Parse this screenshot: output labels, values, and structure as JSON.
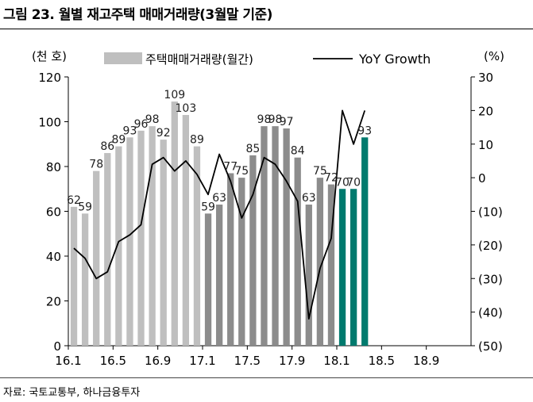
{
  "figure": {
    "title": "그림 23. 월별 재고주택 매매거래량(3월말 기준)",
    "source": "자료: 국토교통부, 하나금융투자"
  },
  "chart_data": {
    "type": "bar",
    "left_unit": "(천 호)",
    "right_unit": "(%)",
    "legend": {
      "bar_label": "주택매매거래량(월간)",
      "line_label": "YoY Growth",
      "placement": "top"
    },
    "x_ticks": [
      "16.1",
      "16.5",
      "16.9",
      "17.1",
      "17.5",
      "17.9",
      "18.1",
      "18.5",
      "18.9"
    ],
    "y_left": {
      "range": [
        0,
        120
      ],
      "ticks": [
        "0",
        "20",
        "40",
        "60",
        "80",
        "100",
        "120"
      ]
    },
    "y_right": {
      "range": [
        -50,
        30
      ],
      "ticks": [
        "(50)",
        "(40)",
        "(30)",
        "(20)",
        "(10)",
        "0",
        "10",
        "20",
        "30"
      ]
    },
    "categories": [
      "16.1",
      "16.2",
      "16.3",
      "16.4",
      "16.5",
      "16.6",
      "16.7",
      "16.8",
      "16.9",
      "16.10",
      "16.11",
      "16.12",
      "17.1",
      "17.2",
      "17.3",
      "17.4",
      "17.5",
      "17.6",
      "17.7",
      "17.8",
      "17.9",
      "17.10",
      "17.11",
      "17.12",
      "18.1",
      "18.2",
      "18.3",
      "18.4",
      "18.5",
      "18.6",
      "18.7",
      "18.8",
      "18.9",
      "18.10",
      "18.11",
      "18.12"
    ],
    "bar_values": [
      62,
      59,
      78,
      86,
      89,
      93,
      96,
      98,
      92,
      109,
      103,
      89,
      59,
      63,
      77,
      75,
      85,
      98,
      98,
      97,
      84,
      63,
      75,
      72,
      70,
      70,
      93
    ],
    "bar_labels": [
      "62",
      "59",
      "78",
      "86",
      "89",
      "93",
      "96",
      "98",
      "92",
      "109",
      "103",
      "89",
      "59",
      "63",
      "77",
      "75",
      "85",
      "98",
      "98",
      "97",
      "84",
      "63",
      "75",
      "72",
      "70",
      "70",
      "93"
    ],
    "bar_colors": {
      "2016": "#bfbfbf",
      "2017": "#8c8c8c",
      "2018": "#007a6e"
    },
    "yoy_growth": [
      -21,
      -24,
      -30,
      -28,
      -19,
      -17,
      -14,
      4,
      6,
      2,
      5,
      1,
      -5,
      7,
      -1,
      -12,
      -5,
      6,
      4,
      -1,
      -7,
      -42,
      -27,
      -18,
      20,
      10,
      20
    ],
    "grid": false
  }
}
